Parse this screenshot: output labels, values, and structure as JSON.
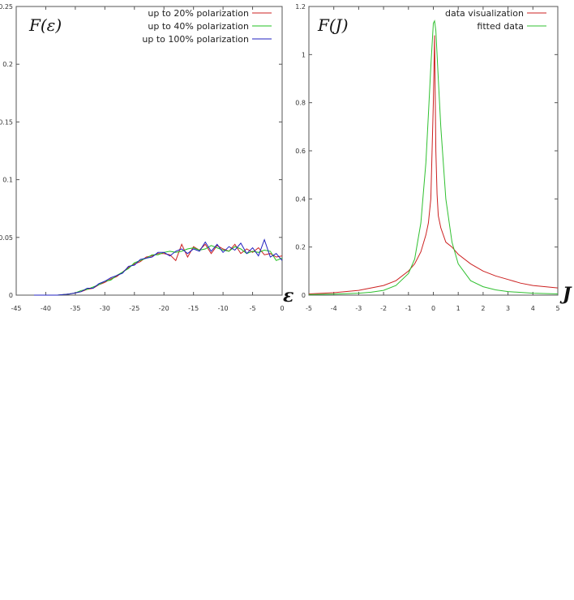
{
  "chart_data": [
    {
      "type": "line",
      "title": "F(ε)",
      "xlabel": "ε",
      "ylabel": "",
      "xlim": [
        -45,
        0
      ],
      "ylim": [
        0,
        0.25
      ],
      "x_ticks": [
        "-45",
        "-40",
        "-35",
        "-30",
        "-25",
        "-20",
        "-15",
        "-10",
        "-5",
        "0"
      ],
      "y_ticks": [
        "0",
        "0.05",
        "0.1",
        "0.15",
        "0.2",
        "0.25"
      ],
      "grid": false,
      "legend_position": "top-right",
      "series": [
        {
          "name": "up to 20% polarization",
          "color": "#cc2020",
          "x": [
            -42,
            -40,
            -38,
            -36,
            -35,
            -34,
            -33,
            -32,
            -31,
            -30,
            -29,
            -28,
            -27,
            -26,
            -25,
            -24,
            -23,
            -22,
            -21,
            -20,
            -19,
            -18,
            -17,
            -16,
            -15,
            -14,
            -13,
            -12,
            -11,
            -10,
            -9,
            -8,
            -7,
            -6,
            -5,
            -4,
            -3,
            -2,
            -1,
            0
          ],
          "y": [
            0,
            0,
            0,
            0.001,
            0.002,
            0.003,
            0.005,
            0.006,
            0.009,
            0.011,
            0.014,
            0.016,
            0.02,
            0.024,
            0.027,
            0.029,
            0.033,
            0.034,
            0.036,
            0.036,
            0.035,
            0.03,
            0.044,
            0.033,
            0.042,
            0.039,
            0.044,
            0.036,
            0.043,
            0.04,
            0.038,
            0.044,
            0.036,
            0.04,
            0.037,
            0.041,
            0.035,
            0.036,
            0.033,
            0.034
          ]
        },
        {
          "name": "up to 40% polarization",
          "color": "#20c020",
          "x": [
            -42,
            -40,
            -38,
            -36,
            -35,
            -34,
            -33,
            -32,
            -31,
            -30,
            -29,
            -28,
            -27,
            -26,
            -25,
            -24,
            -23,
            -22,
            -21,
            -20,
            -19,
            -18,
            -17,
            -16,
            -15,
            -14,
            -13,
            -12,
            -11,
            -10,
            -9,
            -8,
            -7,
            -6,
            -5,
            -4,
            -3,
            -2,
            -1,
            0
          ],
          "y": [
            0,
            0,
            0,
            0.001,
            0.002,
            0.004,
            0.005,
            0.007,
            0.009,
            0.012,
            0.013,
            0.017,
            0.02,
            0.023,
            0.028,
            0.03,
            0.032,
            0.035,
            0.035,
            0.037,
            0.038,
            0.037,
            0.038,
            0.04,
            0.041,
            0.039,
            0.04,
            0.043,
            0.041,
            0.039,
            0.038,
            0.042,
            0.04,
            0.036,
            0.038,
            0.037,
            0.039,
            0.038,
            0.03,
            0.032
          ]
        },
        {
          "name": "up to 100% polarization",
          "color": "#2020c0",
          "x": [
            -42,
            -40,
            -38,
            -36,
            -35,
            -34,
            -33,
            -32,
            -31,
            -30,
            -29,
            -28,
            -27,
            -26,
            -25,
            -24,
            -23,
            -22,
            -21,
            -20,
            -19,
            -18,
            -17,
            -16,
            -15,
            -14,
            -13,
            -12,
            -11,
            -10,
            -9,
            -8,
            -7,
            -6,
            -5,
            -4,
            -3,
            -2,
            -1,
            0
          ],
          "y": [
            0,
            0,
            0,
            0.001,
            0.002,
            0.003,
            0.006,
            0.006,
            0.01,
            0.012,
            0.015,
            0.017,
            0.019,
            0.025,
            0.026,
            0.031,
            0.032,
            0.033,
            0.037,
            0.037,
            0.034,
            0.038,
            0.04,
            0.036,
            0.04,
            0.038,
            0.046,
            0.038,
            0.044,
            0.037,
            0.042,
            0.039,
            0.045,
            0.036,
            0.041,
            0.034,
            0.048,
            0.033,
            0.036,
            0.03
          ]
        }
      ]
    },
    {
      "type": "line",
      "title": "F(J)",
      "xlabel": "J",
      "ylabel": "",
      "xlim": [
        -5,
        5
      ],
      "ylim": [
        0,
        1.2
      ],
      "x_ticks": [
        "-5",
        "-4",
        "-3",
        "-2",
        "-1",
        "0",
        "1",
        "2",
        "3",
        "4",
        "5"
      ],
      "y_ticks": [
        "0",
        "0.2",
        "0.4",
        "0.6",
        "0.8",
        "1",
        "1.2"
      ],
      "grid": false,
      "legend_position": "top-right",
      "series": [
        {
          "name": "data visualization",
          "color": "#cc2020",
          "x": [
            -5,
            -4,
            -3,
            -2.5,
            -2,
            -1.5,
            -1,
            -0.75,
            -0.5,
            -0.3,
            -0.2,
            -0.1,
            0,
            0.05,
            0.1,
            0.15,
            0.2,
            0.3,
            0.5,
            0.75,
            1,
            1.5,
            2,
            2.5,
            3,
            3.5,
            4,
            4.5,
            5
          ],
          "y": [
            0.005,
            0.01,
            0.02,
            0.03,
            0.04,
            0.06,
            0.1,
            0.13,
            0.18,
            0.25,
            0.3,
            0.4,
            0.8,
            1.08,
            0.6,
            0.42,
            0.33,
            0.28,
            0.22,
            0.2,
            0.17,
            0.13,
            0.1,
            0.08,
            0.065,
            0.05,
            0.04,
            0.035,
            0.03
          ]
        },
        {
          "name": "fitted data",
          "color": "#30c030",
          "x": [
            -5,
            -4,
            -3,
            -2.5,
            -2,
            -1.5,
            -1,
            -0.75,
            -0.5,
            -0.3,
            -0.2,
            -0.1,
            0,
            0.05,
            0.1,
            0.2,
            0.3,
            0.5,
            0.75,
            1,
            1.5,
            2,
            2.5,
            3,
            4,
            5
          ],
          "y": [
            0.002,
            0.004,
            0.008,
            0.012,
            0.02,
            0.04,
            0.09,
            0.15,
            0.3,
            0.55,
            0.75,
            0.95,
            1.13,
            1.14,
            1.1,
            0.9,
            0.7,
            0.4,
            0.22,
            0.13,
            0.06,
            0.035,
            0.022,
            0.015,
            0.008,
            0.005
          ]
        }
      ]
    }
  ]
}
